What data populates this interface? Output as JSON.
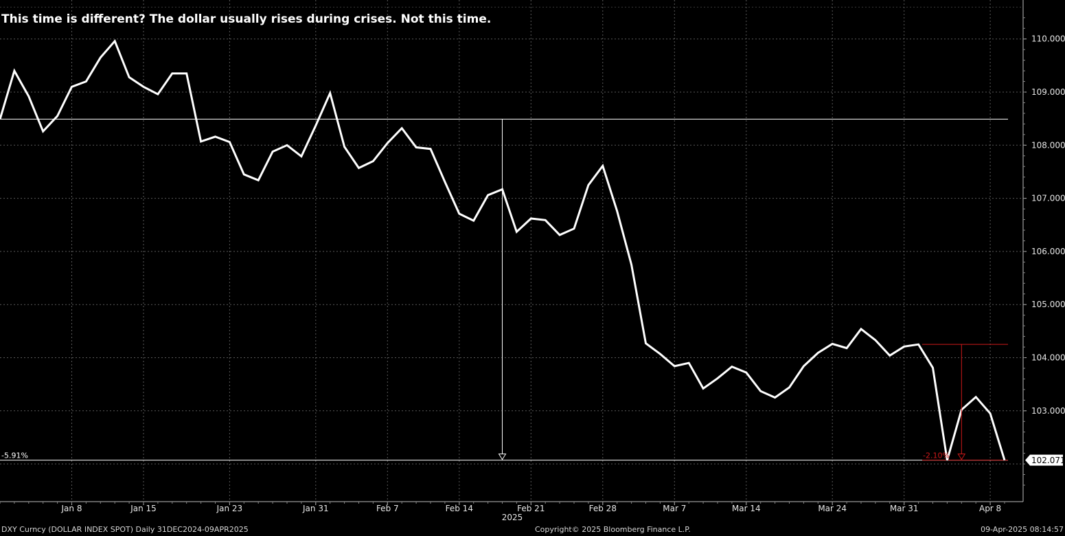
{
  "title": "This time is different? The dollar usually rises during crises. Not this time.",
  "footer": {
    "left": "DXY Curncy (DOLLAR INDEX SPOT)  Daily 31DEC2024-09APR2025",
    "center": "Copyright© 2025 Bloomberg Finance L.P.",
    "right": "09-Apr-2025 08:14:57"
  },
  "chart_data": {
    "type": "line",
    "title": "This time is different? The dollar usually rises during crises. Not this time.",
    "xlabel": "",
    "ylabel": "",
    "year_label": "2025",
    "ylim": [
      101.5,
      110.7
    ],
    "yticks": [
      103,
      104,
      105,
      106,
      107,
      108,
      109,
      110
    ],
    "ytick_labels": [
      "103.000",
      "104.000",
      "105.000",
      "106.000",
      "107.000",
      "108.000",
      "109.000",
      "110.000"
    ],
    "x_tick_labels": [
      {
        "date": "2025-01-08",
        "label": "Jan 8"
      },
      {
        "date": "2025-01-15",
        "label": "Jan 15"
      },
      {
        "date": "2025-01-23",
        "label": "Jan 23"
      },
      {
        "date": "2025-01-31",
        "label": "Jan 31"
      },
      {
        "date": "2025-02-07",
        "label": "Feb 7"
      },
      {
        "date": "2025-02-14",
        "label": "Feb 14"
      },
      {
        "date": "2025-02-21",
        "label": "Feb 21"
      },
      {
        "date": "2025-02-28",
        "label": "Feb 28"
      },
      {
        "date": "2025-03-07",
        "label": "Mar 7"
      },
      {
        "date": "2025-03-14",
        "label": "Mar 14"
      },
      {
        "date": "2025-03-24",
        "label": "Mar 24"
      },
      {
        "date": "2025-03-31",
        "label": "Mar 31"
      },
      {
        "date": "2025-04-08",
        "label": "Apr 8"
      }
    ],
    "grid": true,
    "color": "#ffffff",
    "series": [
      {
        "dates": [
          "2024-12-31",
          "2025-01-02",
          "2025-01-03",
          "2025-01-06",
          "2025-01-07",
          "2025-01-08",
          "2025-01-09",
          "2025-01-10",
          "2025-01-13",
          "2025-01-14",
          "2025-01-15",
          "2025-01-16",
          "2025-01-17",
          "2025-01-20",
          "2025-01-21",
          "2025-01-22",
          "2025-01-23",
          "2025-01-24",
          "2025-01-27",
          "2025-01-28",
          "2025-01-29",
          "2025-01-30",
          "2025-01-31",
          "2025-02-03",
          "2025-02-04",
          "2025-02-05",
          "2025-02-06",
          "2025-02-07",
          "2025-02-10",
          "2025-02-11",
          "2025-02-12",
          "2025-02-13",
          "2025-02-14",
          "2025-02-17",
          "2025-02-18",
          "2025-02-19",
          "2025-02-20",
          "2025-02-21",
          "2025-02-24",
          "2025-02-25",
          "2025-02-26",
          "2025-02-27",
          "2025-02-28",
          "2025-03-03",
          "2025-03-04",
          "2025-03-05",
          "2025-03-06",
          "2025-03-07",
          "2025-03-10",
          "2025-03-11",
          "2025-03-12",
          "2025-03-13",
          "2025-03-14",
          "2025-03-17",
          "2025-03-18",
          "2025-03-19",
          "2025-03-20",
          "2025-03-21",
          "2025-03-24",
          "2025-03-25",
          "2025-03-26",
          "2025-03-27",
          "2025-03-28",
          "2025-03-31",
          "2025-04-01",
          "2025-04-02",
          "2025-04-03",
          "2025-04-04",
          "2025-04-07",
          "2025-04-08",
          "2025-04-09"
        ],
        "values": [
          108.49,
          109.4,
          108.92,
          108.26,
          108.55,
          109.1,
          109.2,
          109.65,
          109.96,
          109.28,
          109.1,
          108.96,
          109.35,
          109.35,
          108.07,
          108.16,
          108.06,
          107.45,
          107.34,
          107.88,
          108.0,
          107.79,
          108.37,
          108.98,
          107.97,
          107.57,
          107.7,
          108.04,
          108.32,
          107.96,
          107.93,
          107.31,
          106.71,
          106.58,
          107.06,
          107.17,
          106.37,
          106.62,
          106.59,
          106.31,
          106.43,
          107.25,
          107.61,
          106.76,
          105.75,
          104.27,
          104.07,
          103.84,
          103.9,
          103.42,
          103.61,
          103.83,
          103.72,
          103.37,
          103.25,
          103.44,
          103.84,
          104.09,
          104.26,
          104.18,
          104.54,
          104.33,
          104.04,
          104.21,
          104.25,
          103.81,
          102.07,
          103.02,
          103.26,
          102.95,
          102.07
        ]
      }
    ],
    "last_value_label": "102.071",
    "reference_lines": [
      108.49,
      102.071,
      104.25
    ],
    "annotations": [
      {
        "label": "-5.91%",
        "color": "#ffffff",
        "from_value": 108.49,
        "to_value": 102.071,
        "at_date": "2025-02-19"
      },
      {
        "label": "-2.10%",
        "color": "#d0191a",
        "from_value": 104.25,
        "to_value": 102.071,
        "at_date": "2025-04-04"
      }
    ]
  }
}
